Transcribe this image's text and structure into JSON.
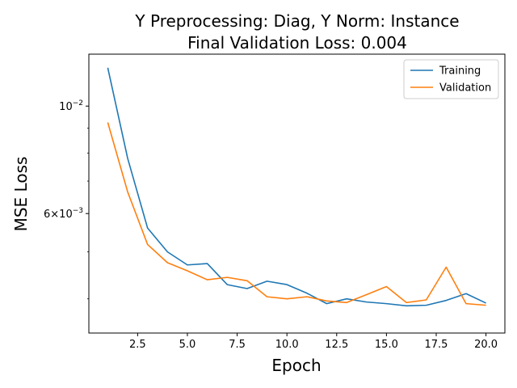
{
  "chart_data": {
    "type": "line",
    "title_line1": "Y Preprocessing: Diag, Y Norm: Instance",
    "title_line2": "Final Validation Loss: 0.004",
    "xlabel": "Epoch",
    "ylabel": "MSE Loss",
    "yscale": "log",
    "xlim": [
      0.05,
      20.95
    ],
    "ylim": [
      0.0034,
      0.0128
    ],
    "x_ticks": [
      {
        "value": 2.5,
        "label": "2.5"
      },
      {
        "value": 5.0,
        "label": "5.0"
      },
      {
        "value": 7.5,
        "label": "7.5"
      },
      {
        "value": 10.0,
        "label": "10.0"
      },
      {
        "value": 12.5,
        "label": "12.5"
      },
      {
        "value": 15.0,
        "label": "15.0"
      },
      {
        "value": 17.5,
        "label": "17.5"
      },
      {
        "value": 20.0,
        "label": "20.0"
      }
    ],
    "y_major_ticks": [
      {
        "value": 0.01,
        "base": "10",
        "exp": "−2"
      },
      {
        "value": 0.006,
        "coef": "6",
        "base": "10",
        "exp": "−3"
      }
    ],
    "y_minor_ticks": [
      0.004,
      0.005,
      0.007,
      0.008,
      0.009
    ],
    "x": [
      1,
      2,
      3,
      4,
      5,
      6,
      7,
      8,
      9,
      10,
      11,
      12,
      13,
      14,
      15,
      16,
      17,
      18,
      19,
      20
    ],
    "series": [
      {
        "name": "Training",
        "color": "#1f77b4",
        "values": [
          0.012,
          0.0078,
          0.0056,
          0.005,
          0.0047,
          0.00473,
          0.00428,
          0.0042,
          0.00435,
          0.00428,
          0.00411,
          0.00391,
          0.004,
          0.00394,
          0.00391,
          0.00387,
          0.00388,
          0.00397,
          0.0041,
          0.00392
        ]
      },
      {
        "name": "Validation",
        "color": "#ff7f0e",
        "values": [
          0.00925,
          0.00665,
          0.00518,
          0.00475,
          0.00457,
          0.00438,
          0.00443,
          0.00436,
          0.00404,
          0.004,
          0.00404,
          0.00396,
          0.00393,
          0.00408,
          0.00424,
          0.00393,
          0.00398,
          0.00465,
          0.00391,
          0.00388
        ]
      }
    ],
    "legend_position": "top-right",
    "grid": false
  }
}
